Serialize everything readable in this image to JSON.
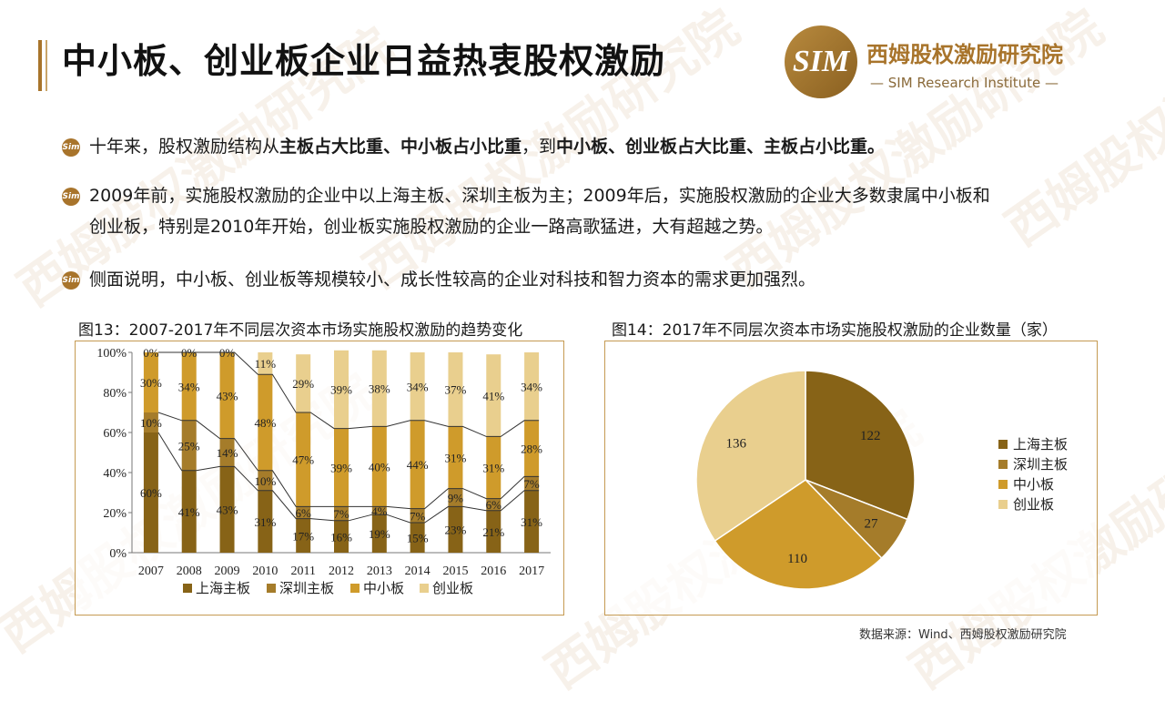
{
  "header": {
    "title": "中小板、创业板企业日益热衷股权激励",
    "brand_cn": "西姆股权激励研究院",
    "brand_en": "— SIM Research Institute —",
    "logo_text": "SIM"
  },
  "bullets": [
    {
      "pre": "十年来，股权激励结构从",
      "b1": "主板占大比重、中小板占小比重",
      "mid": "，到",
      "b2": "中小板、创业板占大比重、主板占小比重。"
    },
    {
      "line1": "2009年前，实施股权激励的企业中以上海主板、深圳主板为主；2009年后，实施股权激励的企业大多数隶属中小板和",
      "line2": "创业板，特别是2010年开始，创业板实施股权激励的企业一路高歌猛进，大有超越之势。"
    },
    {
      "text": "侧面说明，中小板、创业板等规模较小、成长性较高的企业对科技和智力资本的需求更加强烈。"
    }
  ],
  "colors": {
    "accent": "#a8742b",
    "s1": "#876317",
    "s2": "#a57c2a",
    "s3": "#cf9b2b",
    "s4": "#e9cf8e"
  },
  "chart_data": [
    {
      "type": "bar",
      "stacked": true,
      "title": "图13：2007-2017年不同层次资本市场实施股权激励的趋势变化",
      "categories": [
        "2007",
        "2008",
        "2009",
        "2010",
        "2011",
        "2012",
        "2013",
        "2014",
        "2015",
        "2016",
        "2017"
      ],
      "series": [
        {
          "name": "上海主板",
          "values": [
            60,
            41,
            43,
            31,
            17,
            16,
            19,
            15,
            23,
            21,
            31
          ]
        },
        {
          "name": "深圳主板",
          "values": [
            10,
            25,
            14,
            10,
            6,
            7,
            4,
            7,
            9,
            6,
            7
          ]
        },
        {
          "name": "中小板",
          "values": [
            30,
            34,
            43,
            48,
            47,
            39,
            40,
            44,
            31,
            31,
            28
          ]
        },
        {
          "name": "创业板",
          "values": [
            0,
            0,
            0,
            11,
            29,
            39,
            38,
            34,
            37,
            41,
            34
          ]
        }
      ],
      "yticks": [
        "0%",
        "20%",
        "40%",
        "60%",
        "80%",
        "100%"
      ],
      "ylim": [
        0,
        100
      ],
      "legend": "bottom"
    },
    {
      "type": "pie",
      "title": "图14：2017年不同层次资本市场实施股权激励的企业数量（家）",
      "labels": [
        "上海主板",
        "深圳主板",
        "中小板",
        "创业板"
      ],
      "values": [
        122,
        27,
        110,
        136
      ],
      "legend": "right"
    }
  ],
  "source": "数据来源：Wind、西姆股权激励研究院"
}
